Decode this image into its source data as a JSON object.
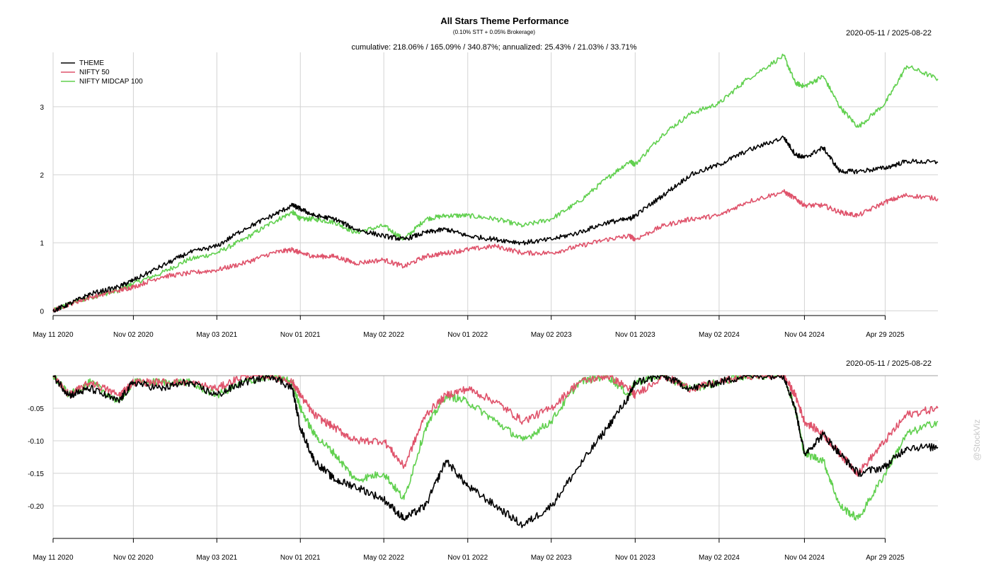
{
  "header": {
    "title": "All Stars Theme Performance",
    "subtitle": "(0.10% STT + 0.05% Brokerage)",
    "date_range_top": "2020-05-11 / 2025-08-22",
    "stats_line": "cumulative: 218.06% / 165.09% / 340.87%; annualized: 25.43% / 21.03% / 33.71%",
    "date_range_bottom": "2020-05-11 / 2025-08-22",
    "watermark": "@StockViz"
  },
  "colors": {
    "THEME": "#000000",
    "NIFTY 50": "#df536b",
    "NIFTY MIDCAP 100": "#61d04f",
    "grid": "#d3d3d3"
  },
  "chart_data": [
    {
      "type": "line",
      "panel": "cumulative-returns",
      "x_ticks": [
        "May 11 2020",
        "Nov 02 2020",
        "May 03 2021",
        "Nov 01 2021",
        "May 02 2022",
        "Nov 01 2022",
        "May 02 2023",
        "Nov 01 2023",
        "May 02 2024",
        "Nov 04 2024",
        "Apr 29 2025"
      ],
      "x_tick_values": [
        "2020-05-11",
        "2020-11-02",
        "2021-05-03",
        "2021-11-01",
        "2022-05-02",
        "2022-11-01",
        "2023-05-02",
        "2023-11-01",
        "2024-05-02",
        "2024-11-04",
        "2025-04-29"
      ],
      "x_range": [
        "2020-05-11",
        "2025-08-22"
      ],
      "y_ticks": [
        0,
        1,
        2,
        3
      ],
      "y_tick_labels": [
        "0",
        "1",
        "2",
        "3"
      ],
      "ylim": [
        -0.07,
        3.8
      ],
      "grid": true,
      "legend_position": "top-left",
      "series": [
        {
          "name": "THEME",
          "x": [
            "2020-05-11",
            "2020-06-15",
            "2020-08-01",
            "2020-10-01",
            "2020-11-02",
            "2021-01-01",
            "2021-03-01",
            "2021-05-03",
            "2021-07-01",
            "2021-09-01",
            "2021-10-15",
            "2021-11-01",
            "2021-12-01",
            "2022-01-15",
            "2022-03-01",
            "2022-05-02",
            "2022-06-15",
            "2022-08-01",
            "2022-09-15",
            "2022-11-01",
            "2023-01-01",
            "2023-03-01",
            "2023-05-02",
            "2023-07-01",
            "2023-09-01",
            "2023-10-20",
            "2023-11-01",
            "2024-01-01",
            "2024-03-01",
            "2024-05-02",
            "2024-07-01",
            "2024-09-20",
            "2024-10-15",
            "2024-11-04",
            "2024-12-15",
            "2025-01-20",
            "2025-03-01",
            "2025-04-29",
            "2025-06-15",
            "2025-08-22"
          ],
          "values": [
            0.0,
            0.1,
            0.25,
            0.35,
            0.45,
            0.65,
            0.85,
            0.95,
            1.2,
            1.4,
            1.55,
            1.5,
            1.4,
            1.35,
            1.2,
            1.1,
            1.05,
            1.15,
            1.2,
            1.1,
            1.05,
            1.0,
            1.05,
            1.15,
            1.3,
            1.35,
            1.4,
            1.7,
            2.0,
            2.15,
            2.35,
            2.55,
            2.3,
            2.25,
            2.4,
            2.05,
            2.05,
            2.1,
            2.2,
            2.18
          ]
        },
        {
          "name": "NIFTY 50",
          "x": [
            "2020-05-11",
            "2020-06-15",
            "2020-08-01",
            "2020-10-01",
            "2020-11-02",
            "2021-01-01",
            "2021-03-01",
            "2021-05-03",
            "2021-07-01",
            "2021-09-01",
            "2021-10-15",
            "2021-11-01",
            "2021-12-01",
            "2022-01-15",
            "2022-03-01",
            "2022-05-02",
            "2022-06-15",
            "2022-08-01",
            "2022-09-15",
            "2022-11-01",
            "2023-01-01",
            "2023-03-01",
            "2023-05-02",
            "2023-07-01",
            "2023-09-01",
            "2023-10-20",
            "2023-11-01",
            "2024-01-01",
            "2024-03-01",
            "2024-05-02",
            "2024-07-01",
            "2024-09-20",
            "2024-10-15",
            "2024-11-04",
            "2024-12-15",
            "2025-01-20",
            "2025-03-01",
            "2025-04-29",
            "2025-06-15",
            "2025-08-22"
          ],
          "values": [
            0.0,
            0.1,
            0.2,
            0.3,
            0.35,
            0.5,
            0.55,
            0.6,
            0.7,
            0.85,
            0.9,
            0.85,
            0.8,
            0.8,
            0.7,
            0.75,
            0.65,
            0.8,
            0.85,
            0.9,
            0.95,
            0.85,
            0.85,
            0.95,
            1.05,
            1.1,
            1.05,
            1.25,
            1.35,
            1.4,
            1.6,
            1.75,
            1.65,
            1.55,
            1.55,
            1.45,
            1.4,
            1.6,
            1.7,
            1.65
          ]
        },
        {
          "name": "NIFTY MIDCAP 100",
          "x": [
            "2020-05-11",
            "2020-06-15",
            "2020-08-01",
            "2020-10-01",
            "2020-11-02",
            "2021-01-01",
            "2021-03-01",
            "2021-05-03",
            "2021-07-01",
            "2021-09-01",
            "2021-10-15",
            "2021-11-01",
            "2021-12-01",
            "2022-01-15",
            "2022-03-01",
            "2022-05-02",
            "2022-06-15",
            "2022-08-01",
            "2022-09-15",
            "2022-11-01",
            "2023-01-01",
            "2023-03-01",
            "2023-05-02",
            "2023-07-01",
            "2023-09-01",
            "2023-10-20",
            "2023-11-01",
            "2024-01-01",
            "2024-03-01",
            "2024-05-02",
            "2024-07-01",
            "2024-09-20",
            "2024-10-15",
            "2024-11-04",
            "2024-12-15",
            "2025-01-20",
            "2025-03-01",
            "2025-04-29",
            "2025-06-15",
            "2025-08-22"
          ],
          "values": [
            0.0,
            0.1,
            0.2,
            0.3,
            0.4,
            0.55,
            0.75,
            0.85,
            1.05,
            1.3,
            1.45,
            1.35,
            1.35,
            1.3,
            1.15,
            1.25,
            1.05,
            1.35,
            1.4,
            1.4,
            1.35,
            1.25,
            1.35,
            1.6,
            1.95,
            2.2,
            2.15,
            2.6,
            2.9,
            3.05,
            3.4,
            3.75,
            3.35,
            3.3,
            3.45,
            3.0,
            2.7,
            3.05,
            3.6,
            3.41
          ]
        }
      ]
    },
    {
      "type": "line",
      "panel": "drawdowns",
      "x_ticks": [
        "May 11 2020",
        "Nov 02 2020",
        "May 03 2021",
        "Nov 01 2021",
        "May 02 2022",
        "Nov 01 2022",
        "May 02 2023",
        "Nov 01 2023",
        "May 02 2024",
        "Nov 04 2024",
        "Apr 29 2025"
      ],
      "x_tick_values": [
        "2020-05-11",
        "2020-11-02",
        "2021-05-03",
        "2021-11-01",
        "2022-05-02",
        "2022-11-01",
        "2023-05-02",
        "2023-11-01",
        "2024-05-02",
        "2024-11-04",
        "2025-04-29"
      ],
      "x_range": [
        "2020-05-11",
        "2025-08-22"
      ],
      "y_ticks": [
        -0.05,
        -0.1,
        -0.15,
        -0.2
      ],
      "y_tick_labels": [
        "-0.05",
        "-0.10",
        "-0.15",
        "-0.20"
      ],
      "ylim": [
        -0.25,
        0
      ],
      "grid": true,
      "series": [
        {
          "name": "THEME",
          "x": [
            "2020-05-11",
            "2020-06-15",
            "2020-08-01",
            "2020-10-01",
            "2020-11-02",
            "2021-01-01",
            "2021-03-01",
            "2021-05-03",
            "2021-07-01",
            "2021-09-01",
            "2021-10-15",
            "2021-11-01",
            "2021-12-01",
            "2022-01-15",
            "2022-03-01",
            "2022-05-02",
            "2022-06-15",
            "2022-08-01",
            "2022-09-15",
            "2022-11-01",
            "2023-01-01",
            "2023-03-01",
            "2023-05-02",
            "2023-07-01",
            "2023-09-01",
            "2023-10-20",
            "2023-11-01",
            "2024-01-01",
            "2024-03-01",
            "2024-05-02",
            "2024-07-01",
            "2024-09-20",
            "2024-10-15",
            "2024-11-04",
            "2024-12-15",
            "2025-01-20",
            "2025-03-01",
            "2025-04-29",
            "2025-06-15",
            "2025-08-22"
          ],
          "values": [
            0.0,
            -0.03,
            -0.02,
            -0.04,
            -0.01,
            -0.02,
            -0.01,
            -0.03,
            -0.01,
            0.0,
            -0.02,
            -0.08,
            -0.13,
            -0.16,
            -0.17,
            -0.19,
            -0.22,
            -0.2,
            -0.13,
            -0.17,
            -0.2,
            -0.23,
            -0.2,
            -0.14,
            -0.08,
            -0.03,
            -0.01,
            0.0,
            -0.02,
            -0.01,
            0.0,
            0.0,
            -0.05,
            -0.12,
            -0.09,
            -0.12,
            -0.15,
            -0.14,
            -0.11,
            -0.11
          ]
        },
        {
          "name": "NIFTY 50",
          "x": [
            "2020-05-11",
            "2020-06-15",
            "2020-08-01",
            "2020-10-01",
            "2020-11-02",
            "2021-01-01",
            "2021-03-01",
            "2021-05-03",
            "2021-07-01",
            "2021-09-01",
            "2021-10-15",
            "2021-11-01",
            "2021-12-01",
            "2022-01-15",
            "2022-03-01",
            "2022-05-02",
            "2022-06-15",
            "2022-08-01",
            "2022-09-15",
            "2022-11-01",
            "2023-01-01",
            "2023-03-01",
            "2023-05-02",
            "2023-07-01",
            "2023-09-01",
            "2023-10-20",
            "2023-11-01",
            "2024-01-01",
            "2024-03-01",
            "2024-05-02",
            "2024-07-01",
            "2024-09-20",
            "2024-10-15",
            "2024-11-04",
            "2024-12-15",
            "2025-01-20",
            "2025-03-01",
            "2025-04-29",
            "2025-06-15",
            "2025-08-22"
          ],
          "values": [
            0.0,
            -0.03,
            -0.01,
            -0.03,
            -0.01,
            -0.01,
            -0.01,
            -0.02,
            0.0,
            0.0,
            -0.01,
            -0.03,
            -0.06,
            -0.08,
            -0.1,
            -0.1,
            -0.14,
            -0.06,
            -0.03,
            -0.02,
            -0.04,
            -0.07,
            -0.05,
            -0.01,
            0.0,
            -0.02,
            -0.03,
            0.0,
            -0.02,
            -0.01,
            0.0,
            0.0,
            -0.03,
            -0.07,
            -0.09,
            -0.12,
            -0.15,
            -0.1,
            -0.06,
            -0.05
          ]
        },
        {
          "name": "NIFTY MIDCAP 100",
          "x": [
            "2020-05-11",
            "2020-06-15",
            "2020-08-01",
            "2020-10-01",
            "2020-11-02",
            "2021-01-01",
            "2021-03-01",
            "2021-05-03",
            "2021-07-01",
            "2021-09-01",
            "2021-10-15",
            "2021-11-01",
            "2021-12-01",
            "2022-01-15",
            "2022-03-01",
            "2022-05-02",
            "2022-06-15",
            "2022-08-01",
            "2022-09-15",
            "2022-11-01",
            "2023-01-01",
            "2023-03-01",
            "2023-05-02",
            "2023-07-01",
            "2023-09-01",
            "2023-10-20",
            "2023-11-01",
            "2024-01-01",
            "2024-03-01",
            "2024-05-02",
            "2024-07-01",
            "2024-09-20",
            "2024-10-15",
            "2024-11-04",
            "2024-12-15",
            "2025-01-20",
            "2025-03-01",
            "2025-04-29",
            "2025-06-15",
            "2025-08-22"
          ],
          "values": [
            0.0,
            -0.03,
            -0.01,
            -0.04,
            -0.01,
            -0.01,
            -0.01,
            -0.03,
            -0.01,
            0.0,
            -0.01,
            -0.05,
            -0.09,
            -0.12,
            -0.16,
            -0.15,
            -0.19,
            -0.08,
            -0.03,
            -0.04,
            -0.07,
            -0.1,
            -0.07,
            -0.01,
            0.0,
            -0.03,
            -0.01,
            0.0,
            -0.02,
            -0.01,
            0.0,
            0.0,
            -0.05,
            -0.12,
            -0.13,
            -0.2,
            -0.22,
            -0.15,
            -0.09,
            -0.07
          ]
        }
      ]
    }
  ]
}
